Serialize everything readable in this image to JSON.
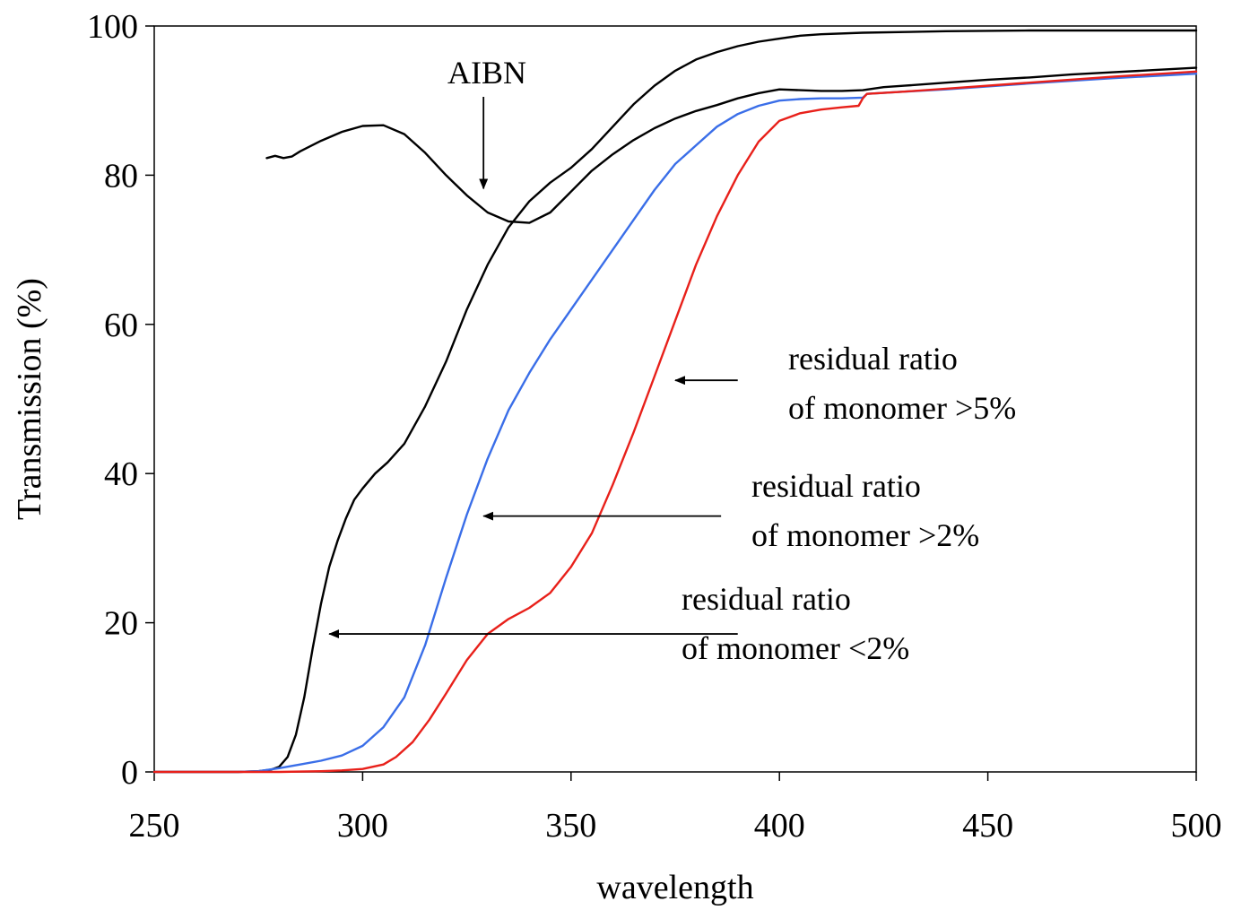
{
  "chart_data": {
    "type": "line",
    "xlabel": "wavelength",
    "ylabel": "Transmission (%)",
    "xlim": [
      250,
      500
    ],
    "ylim": [
      0,
      100
    ],
    "xticks": [
      250,
      300,
      350,
      400,
      450,
      500
    ],
    "yticks": [
      0,
      20,
      40,
      60,
      80,
      100
    ],
    "grid": false,
    "legend": "none",
    "series": [
      {
        "key": "aibn",
        "color": "#000000",
        "x": [
          277,
          279,
          281,
          283,
          285,
          290,
          295,
          300,
          305,
          310,
          315,
          320,
          325,
          330,
          335,
          340,
          345,
          350,
          355,
          360,
          365,
          370,
          375,
          380,
          385,
          390,
          395,
          400,
          405,
          410,
          415,
          420,
          425,
          430,
          440,
          450,
          460,
          470,
          480,
          490,
          500
        ],
        "y": [
          82.3,
          82.6,
          82.3,
          82.5,
          83.2,
          84.6,
          85.8,
          86.6,
          86.7,
          85.5,
          83.0,
          80.0,
          77.3,
          75.0,
          73.8,
          73.6,
          75.0,
          77.8,
          80.6,
          82.8,
          84.7,
          86.3,
          87.6,
          88.6,
          89.4,
          90.3,
          91.0,
          91.5,
          91.4,
          91.3,
          91.3,
          91.4,
          91.8,
          92.0,
          92.4,
          92.8,
          93.1,
          93.5,
          93.8,
          94.1,
          94.4
        ]
      },
      {
        "key": "monomer_lt2",
        "color": "#000000",
        "x": [
          250,
          260,
          270,
          275,
          278,
          280,
          282,
          284,
          286,
          288,
          290,
          292,
          294,
          296,
          298,
          300,
          303,
          306,
          310,
          315,
          320,
          325,
          330,
          335,
          340,
          345,
          350,
          355,
          360,
          365,
          370,
          375,
          380,
          385,
          390,
          395,
          400,
          405,
          410,
          420,
          430,
          440,
          460,
          480,
          500
        ],
        "y": [
          0,
          0,
          0,
          0.1,
          0.3,
          0.7,
          2,
          5,
          10,
          16.5,
          22.5,
          27.5,
          31,
          34,
          36.5,
          38,
          40,
          41.5,
          44,
          49,
          55,
          62,
          68,
          73,
          76.5,
          79,
          81,
          83.5,
          86.5,
          89.5,
          92,
          94,
          95.5,
          96.5,
          97.3,
          97.9,
          98.3,
          98.7,
          98.9,
          99.1,
          99.2,
          99.3,
          99.4,
          99.4,
          99.4
        ]
      },
      {
        "key": "monomer_gt2",
        "color": "#3a6ee8",
        "x": [
          250,
          260,
          270,
          275,
          280,
          285,
          290,
          295,
          300,
          305,
          310,
          315,
          320,
          325,
          330,
          335,
          340,
          345,
          350,
          355,
          360,
          365,
          370,
          375,
          380,
          385,
          390,
          395,
          400,
          405,
          410,
          415,
          420,
          421,
          430,
          440,
          460,
          480,
          500
        ],
        "y": [
          0,
          0,
          0,
          0.1,
          0.5,
          1,
          1.5,
          2.2,
          3.5,
          6,
          10,
          17,
          26,
          34.5,
          42,
          48.5,
          53.5,
          58,
          62,
          66,
          70,
          74,
          78,
          81.5,
          84,
          86.5,
          88.2,
          89.3,
          90.0,
          90.2,
          90.3,
          90.3,
          90.4,
          90.9,
          91.2,
          91.5,
          92.3,
          93.0,
          93.6
        ]
      },
      {
        "key": "monomer_gt5",
        "color": "#e8201a",
        "x": [
          250,
          260,
          270,
          280,
          290,
          295,
          300,
          305,
          308,
          312,
          316,
          320,
          325,
          330,
          335,
          340,
          345,
          350,
          355,
          360,
          365,
          370,
          375,
          380,
          385,
          390,
          395,
          400,
          405,
          410,
          415,
          419,
          420,
          421,
          430,
          440,
          460,
          480,
          500
        ],
        "y": [
          0,
          0,
          0,
          0,
          0.1,
          0.2,
          0.4,
          1,
          2,
          4,
          7,
          10.5,
          15,
          18.5,
          20.5,
          22,
          24,
          27.5,
          32,
          38.5,
          45.5,
          53,
          60.5,
          68,
          74.5,
          80,
          84.5,
          87.3,
          88.3,
          88.8,
          89.1,
          89.3,
          90.3,
          90.9,
          91.2,
          91.6,
          92.4,
          93.2,
          93.9
        ]
      }
    ],
    "annotations": [
      {
        "key": "aibn",
        "lines": [
          "AIBN"
        ],
        "arrow_from": [
          329,
          90.5
        ],
        "arrow_to": [
          329,
          78.2
        ]
      },
      {
        "key": "gt5",
        "lines": [
          " residual ratio",
          "of monomer >5%"
        ],
        "arrow_from": [
          390,
          52.5
        ],
        "arrow_to": [
          375,
          52.5
        ]
      },
      {
        "key": "gt2",
        "lines": [
          "residual ratio",
          "of monomer >2%"
        ],
        "arrow_from": [
          386,
          34.3
        ],
        "arrow_to": [
          329,
          34.3
        ]
      },
      {
        "key": "lt2",
        "lines": [
          "residual ratio",
          "of monomer <2%"
        ],
        "arrow_from": [
          390,
          18.5
        ],
        "arrow_to": [
          292,
          18.5
        ]
      }
    ]
  }
}
